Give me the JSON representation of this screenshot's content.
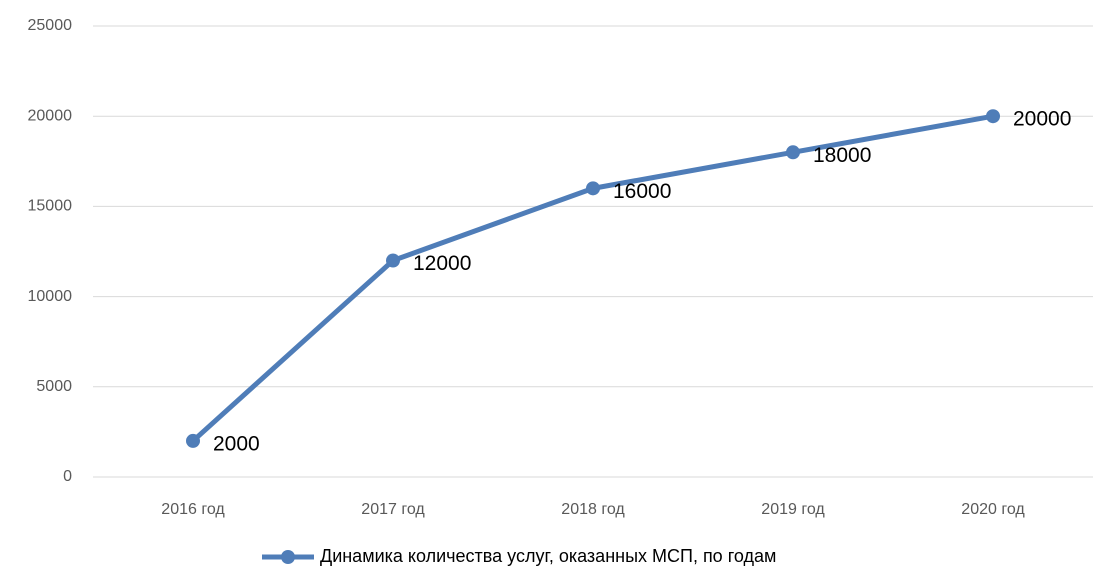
{
  "chart_data": {
    "type": "line",
    "categories": [
      "2016 год",
      "2017 год",
      "2018 год",
      "2019 год",
      "2020 год"
    ],
    "series": [
      {
        "name": "Динамика количества услуг, оказанных МСП, по годам",
        "color": "#4f7db8",
        "values": [
          2000,
          12000,
          16000,
          18000,
          20000
        ]
      }
    ],
    "ylim": [
      0,
      25000
    ],
    "yticks": [
      0,
      5000,
      10000,
      15000,
      20000,
      25000
    ],
    "grid": true,
    "legend": "bottom"
  }
}
